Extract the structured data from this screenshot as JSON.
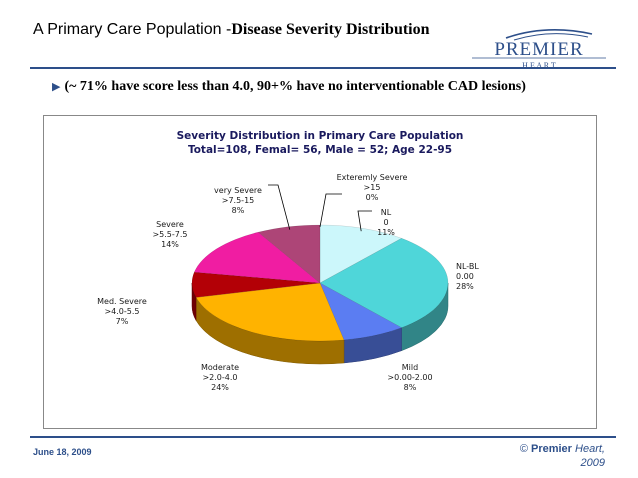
{
  "slide": {
    "title_plain": "A Primary Care Population -",
    "title_bold": "Disease Severity Distribution",
    "logo_main": "PREMIER",
    "logo_sub": "H E A R T",
    "bullet": "(~ 71% have score less than 4.0, 90+% have no interventionable CAD lesions)",
    "date": "June 18, 2009",
    "copyright_symbol": "©",
    "copyright_company": "Premier",
    "copyright_rest": "Heart,",
    "copyright_year": "2009",
    "colors": {
      "accent": "#2d4f8a",
      "chart_title": "#1a1a5e"
    }
  },
  "chart_data": {
    "type": "pie",
    "title": "Severity Distribution in Primary Care Population",
    "subtitle": "Total=108, Femal= 56, Male = 52; Age 22-95",
    "unit": "%",
    "slices": [
      {
        "name": "NL",
        "range": "0",
        "value": 11,
        "label": "11%",
        "color": "#ccf7fb"
      },
      {
        "name": "NL-BL",
        "range": "0.00",
        "value": 28,
        "label": "28%",
        "color": "#4fd6d9"
      },
      {
        "name": "Mild",
        "range": ">0.00-2.00",
        "value": 8,
        "label": "8%",
        "color": "#5b7df2"
      },
      {
        "name": "Moderate",
        "range": ">2.0-4.0",
        "value": 24,
        "label": "24%",
        "color": "#ffb300"
      },
      {
        "name": "Med. Severe",
        "range": ">4.0-5.5",
        "value": 7,
        "label": "7%",
        "color": "#b30006"
      },
      {
        "name": "Severe",
        "range": ">5.5-7.5",
        "value": 14,
        "label": "14%",
        "color": "#f01da2"
      },
      {
        "name": "very Severe",
        "range": ">7.5-15",
        "value": 8,
        "label": "8%",
        "color": "#ad4577"
      },
      {
        "name": "Exteremly Severe",
        "range": ">15",
        "value": 0,
        "label": "0%",
        "color": "#6a1a3e"
      }
    ]
  }
}
